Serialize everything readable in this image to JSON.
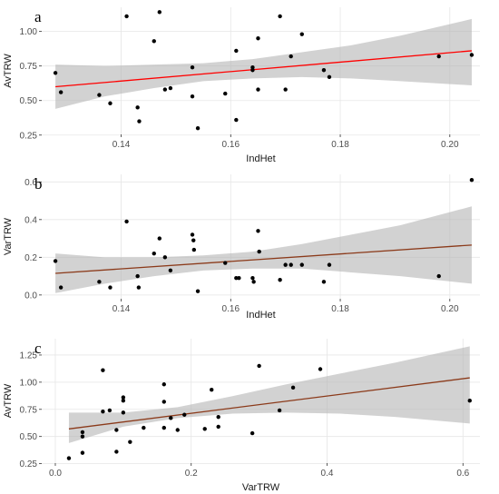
{
  "chart_data": [
    {
      "panel_tag": "a",
      "type": "scatter",
      "xlabel": "IndHet",
      "ylabel": "AvTRW",
      "xlim": [
        0.1255,
        0.2055
      ],
      "ylim": [
        0.255,
        1.175
      ],
      "xticks": [
        0.14,
        0.16,
        0.18,
        0.2
      ],
      "xtick_labels": [
        "0.14",
        "0.16",
        "0.18",
        "0.20"
      ],
      "yticks": [
        0.25,
        0.5,
        0.75,
        1.0
      ],
      "ytick_labels": [
        "0.25",
        "0.50",
        "0.75",
        "1.00"
      ],
      "points": [
        [
          0.128,
          0.7
        ],
        [
          0.129,
          0.56
        ],
        [
          0.136,
          0.54
        ],
        [
          0.138,
          0.48
        ],
        [
          0.141,
          1.11
        ],
        [
          0.143,
          0.45
        ],
        [
          0.1433,
          0.35
        ],
        [
          0.146,
          0.93
        ],
        [
          0.147,
          1.14
        ],
        [
          0.148,
          0.58
        ],
        [
          0.149,
          0.59
        ],
        [
          0.153,
          0.74
        ],
        [
          0.153,
          0.53
        ],
        [
          0.154,
          0.3
        ],
        [
          0.159,
          0.55
        ],
        [
          0.161,
          0.86
        ],
        [
          0.161,
          0.36
        ],
        [
          0.164,
          0.74
        ],
        [
          0.164,
          0.72
        ],
        [
          0.165,
          0.95
        ],
        [
          0.165,
          0.58
        ],
        [
          0.169,
          1.11
        ],
        [
          0.17,
          0.58
        ],
        [
          0.171,
          0.82
        ],
        [
          0.173,
          0.98
        ],
        [
          0.177,
          0.72
        ],
        [
          0.178,
          0.67
        ],
        [
          0.198,
          0.82
        ],
        [
          0.204,
          0.83
        ]
      ],
      "fit": {
        "x": [
          0.128,
          0.204
        ],
        "y": [
          0.6,
          0.86
        ]
      },
      "band": {
        "x": [
          0.128,
          0.137,
          0.146,
          0.155,
          0.164,
          0.173,
          0.182,
          0.191,
          0.204
        ],
        "lower": [
          0.44,
          0.53,
          0.59,
          0.64,
          0.66,
          0.67,
          0.66,
          0.64,
          0.61
        ],
        "upper": [
          0.76,
          0.75,
          0.76,
          0.77,
          0.8,
          0.85,
          0.9,
          0.97,
          1.09
        ]
      }
    },
    {
      "panel_tag": "b",
      "type": "scatter",
      "xlabel": "IndHet",
      "ylabel": "VarTRW",
      "xlim": [
        0.1255,
        0.2055
      ],
      "ylim": [
        -0.02,
        0.64
      ],
      "xticks": [
        0.14,
        0.16,
        0.18,
        0.2
      ],
      "xtick_labels": [
        "0.14",
        "0.16",
        "0.18",
        "0.20"
      ],
      "yticks": [
        0.0,
        0.2,
        0.4,
        0.6
      ],
      "ytick_labels": [
        "0.0",
        "0.2",
        "0.4",
        "0.6"
      ],
      "points": [
        [
          0.128,
          0.18
        ],
        [
          0.129,
          0.04
        ],
        [
          0.136,
          0.07
        ],
        [
          0.138,
          0.04
        ],
        [
          0.141,
          0.39
        ],
        [
          0.143,
          0.1
        ],
        [
          0.1432,
          0.04
        ],
        [
          0.146,
          0.22
        ],
        [
          0.147,
          0.3
        ],
        [
          0.148,
          0.2
        ],
        [
          0.149,
          0.13
        ],
        [
          0.153,
          0.32
        ],
        [
          0.1532,
          0.29
        ],
        [
          0.1533,
          0.24
        ],
        [
          0.154,
          0.02
        ],
        [
          0.159,
          0.17
        ],
        [
          0.161,
          0.09
        ],
        [
          0.1615,
          0.09
        ],
        [
          0.164,
          0.09
        ],
        [
          0.1642,
          0.07
        ],
        [
          0.165,
          0.34
        ],
        [
          0.1652,
          0.23
        ],
        [
          0.169,
          0.08
        ],
        [
          0.17,
          0.16
        ],
        [
          0.171,
          0.16
        ],
        [
          0.173,
          0.16
        ],
        [
          0.177,
          0.07
        ],
        [
          0.178,
          0.16
        ],
        [
          0.198,
          0.1
        ],
        [
          0.204,
          0.61
        ]
      ],
      "fit": {
        "x": [
          0.128,
          0.204
        ],
        "y": [
          0.115,
          0.265
        ]
      },
      "band": {
        "x": [
          0.128,
          0.137,
          0.146,
          0.155,
          0.164,
          0.173,
          0.182,
          0.191,
          0.204
        ],
        "lower": [
          0.01,
          0.06,
          0.1,
          0.13,
          0.14,
          0.14,
          0.12,
          0.1,
          0.06
        ],
        "upper": [
          0.22,
          0.2,
          0.2,
          0.21,
          0.23,
          0.27,
          0.32,
          0.37,
          0.47
        ]
      }
    },
    {
      "panel_tag": "c",
      "type": "scatter",
      "xlabel": "VarTRW",
      "ylabel": "AvTRW",
      "xlim": [
        -0.02,
        0.625
      ],
      "ylim": [
        0.255,
        1.4
      ],
      "xticks": [
        0.0,
        0.2,
        0.4,
        0.6
      ],
      "xtick_labels": [
        "0.0",
        "0.2",
        "0.4",
        "0.6"
      ],
      "yticks": [
        0.25,
        0.5,
        0.75,
        1.0,
        1.25
      ],
      "ytick_labels": [
        "0.25",
        "0.50",
        "0.75",
        "1.00",
        "1.25"
      ],
      "points": [
        [
          0.02,
          0.3
        ],
        [
          0.04,
          0.35
        ],
        [
          0.04,
          0.5
        ],
        [
          0.04,
          0.54
        ],
        [
          0.07,
          0.73
        ],
        [
          0.07,
          1.11
        ],
        [
          0.08,
          0.74
        ],
        [
          0.09,
          0.36
        ],
        [
          0.09,
          0.56
        ],
        [
          0.1,
          0.83
        ],
        [
          0.1,
          0.86
        ],
        [
          0.1,
          0.72
        ],
        [
          0.11,
          0.45
        ],
        [
          0.13,
          0.58
        ],
        [
          0.16,
          0.58
        ],
        [
          0.16,
          0.98
        ],
        [
          0.16,
          0.82
        ],
        [
          0.17,
          0.67
        ],
        [
          0.18,
          0.56
        ],
        [
          0.19,
          0.7
        ],
        [
          0.22,
          0.57
        ],
        [
          0.23,
          0.93
        ],
        [
          0.24,
          0.59
        ],
        [
          0.24,
          0.68
        ],
        [
          0.29,
          0.53
        ],
        [
          0.3,
          1.15
        ],
        [
          0.33,
          0.74
        ],
        [
          0.35,
          0.95
        ],
        [
          0.39,
          1.12
        ],
        [
          0.61,
          0.83
        ]
      ],
      "fit": {
        "x": [
          0.02,
          0.61
        ],
        "y": [
          0.57,
          1.04
        ]
      },
      "band": {
        "x": [
          0.02,
          0.1,
          0.18,
          0.26,
          0.34,
          0.42,
          0.5,
          0.61
        ],
        "lower": [
          0.44,
          0.59,
          0.67,
          0.71,
          0.72,
          0.71,
          0.68,
          0.62
        ],
        "upper": [
          0.72,
          0.72,
          0.77,
          0.87,
          0.98,
          1.08,
          1.18,
          1.33
        ]
      }
    }
  ],
  "style": {
    "fit_color": "#ff0000",
    "fit_color_alt": "#8b3a1a",
    "band_color": "#b4b4b4",
    "point_color": "#000000"
  }
}
